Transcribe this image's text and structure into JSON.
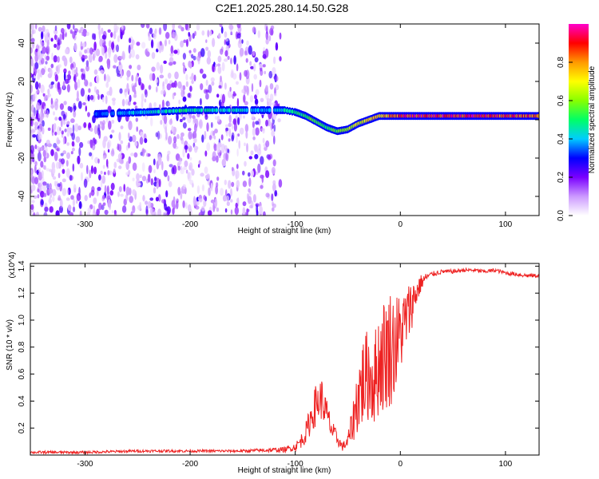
{
  "title": "C2E1.2025.280.14.50.G28",
  "chart_data": [
    {
      "type": "heatmap",
      "name": "spectrogram",
      "xlabel": "Height of straight line (km)",
      "ylabel": "Frequency (Hz)",
      "xlim": [
        -352,
        132
      ],
      "ylim": [
        -50,
        50
      ],
      "xticks": [
        -300,
        -200,
        -100,
        0,
        100
      ],
      "yticks": [
        -40,
        -20,
        0,
        20,
        40
      ],
      "xtick_labels": [
        "-300",
        "-200",
        "-100",
        "0",
        "100"
      ],
      "ytick_labels": [
        "-40",
        "-20",
        "0",
        "20",
        "40"
      ],
      "noise_region_x": [
        -352,
        -120
      ],
      "ridge": {
        "x": [
          -290,
          -240,
          -200,
          -160,
          -130,
          -110,
          -100,
          -90,
          -80,
          -70,
          -60,
          -50,
          -40,
          -30,
          -20,
          -10,
          0,
          20,
          50,
          80,
          100,
          132
        ],
        "frequency_hz": [
          3,
          4,
          5,
          5,
          5,
          5,
          4,
          2,
          -1,
          -4,
          -6,
          -5,
          -2,
          0,
          2,
          2,
          2,
          2,
          2,
          2,
          2,
          2
        ],
        "amplitude": [
          0.35,
          0.45,
          0.5,
          0.45,
          0.4,
          0.45,
          0.5,
          0.55,
          0.6,
          0.55,
          0.6,
          0.65,
          0.7,
          0.75,
          0.8,
          0.85,
          0.9,
          0.95,
          0.95,
          0.95,
          0.9,
          0.9
        ]
      },
      "colorbar": {
        "label": "Normalized spectral amplitude",
        "range": [
          0,
          1
        ],
        "ticks": [
          0.0,
          0.2,
          0.4,
          0.6,
          0.8
        ],
        "tick_labels": [
          "0.0",
          "0.2",
          "0.4",
          "0.6",
          "0.8"
        ],
        "colors": [
          "#ffffff",
          "#cc99ff",
          "#7a00ff",
          "#0000ff",
          "#00ccff",
          "#00ff66",
          "#88ff00",
          "#ffff00",
          "#ff9900",
          "#ff0000",
          "#ff00cc"
        ]
      }
    },
    {
      "type": "line",
      "name": "snr",
      "xlabel": "Height of straight line (km)",
      "ylabel": "SNR (10 * v/v)",
      "y_scale_label": "(x10^4)",
      "xlim": [
        -352,
        132
      ],
      "ylim": [
        0,
        1.42
      ],
      "xticks": [
        -300,
        -200,
        -100,
        0,
        100
      ],
      "yticks": [
        0.2,
        0.4,
        0.6,
        0.8,
        1.0,
        1.2,
        1.4
      ],
      "xtick_labels": [
        "-300",
        "-200",
        "-100",
        "0",
        "100"
      ],
      "ytick_labels": [
        "0.2",
        "0.4",
        "0.6",
        "0.8",
        "1.0",
        "1.2",
        "1.4"
      ],
      "series": [
        {
          "name": "SNR",
          "color": "#ee2222",
          "x": [
            -352,
            -300,
            -250,
            -200,
            -150,
            -110,
            -100,
            -95,
            -90,
            -85,
            -80,
            -75,
            -70,
            -65,
            -60,
            -55,
            -50,
            -45,
            -40,
            -35,
            -30,
            -25,
            -20,
            -15,
            -10,
            -5,
            0,
            5,
            10,
            15,
            20,
            25,
            30,
            35,
            40,
            50,
            60,
            70,
            80,
            90,
            100,
            110,
            120,
            132
          ],
          "y": [
            0.02,
            0.02,
            0.03,
            0.03,
            0.03,
            0.04,
            0.06,
            0.1,
            0.16,
            0.28,
            0.38,
            0.42,
            0.3,
            0.18,
            0.12,
            0.06,
            0.1,
            0.25,
            0.45,
            0.55,
            0.6,
            0.55,
            0.7,
            0.75,
            0.8,
            0.82,
            0.9,
            1.0,
            1.1,
            1.2,
            1.28,
            1.32,
            1.34,
            1.35,
            1.36,
            1.36,
            1.37,
            1.37,
            1.36,
            1.37,
            1.35,
            1.34,
            1.33,
            1.33
          ],
          "jitter": [
            0.01,
            0.01,
            0.01,
            0.01,
            0.01,
            0.02,
            0.03,
            0.05,
            0.08,
            0.12,
            0.16,
            0.16,
            0.12,
            0.08,
            0.05,
            0.03,
            0.06,
            0.15,
            0.3,
            0.35,
            0.35,
            0.35,
            0.4,
            0.45,
            0.45,
            0.4,
            0.3,
            0.25,
            0.2,
            0.12,
            0.06,
            0.03,
            0.02,
            0.02,
            0.015,
            0.015,
            0.015,
            0.015,
            0.015,
            0.015,
            0.015,
            0.015,
            0.015,
            0.015
          ]
        }
      ]
    }
  ]
}
